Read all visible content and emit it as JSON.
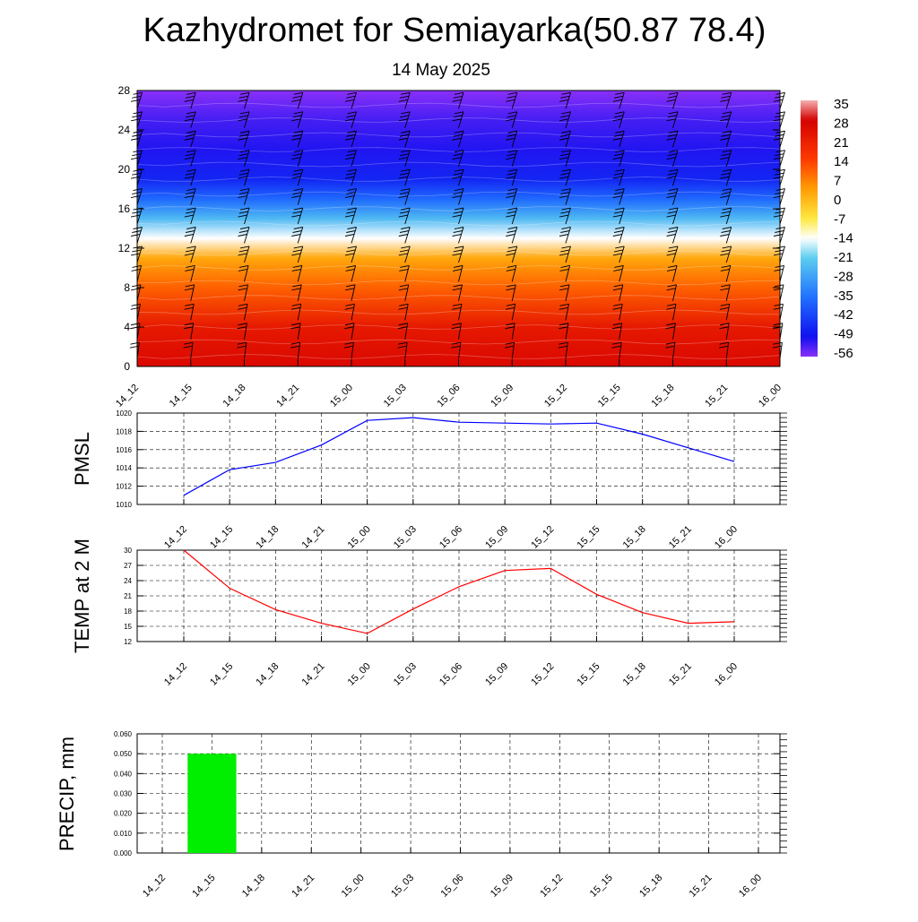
{
  "header": {
    "title": "Kazhydromet for Semiayarka(50.87 78.4)",
    "subtitle": "14 May 2025"
  },
  "time_labels": [
    "14_12",
    "14_15",
    "14_18",
    "14_21",
    "15_00",
    "15_03",
    "15_06",
    "15_09",
    "15_12",
    "15_15",
    "15_18",
    "15_21",
    "16_00"
  ],
  "chart_data": [
    {
      "type": "heatmap",
      "title": "",
      "xlabel": "",
      "ylabel": "",
      "x": [
        "14_12",
        "14_15",
        "14_18",
        "14_21",
        "15_00",
        "15_03",
        "15_06",
        "15_09",
        "15_12",
        "15_15",
        "15_18",
        "15_21",
        "16_00"
      ],
      "y_ticks": [
        "0",
        "4",
        "8",
        "12",
        "16",
        "20",
        "24",
        "28"
      ],
      "ylim": [
        0,
        28
      ],
      "colorbar_labels": [
        "35",
        "28",
        "21",
        "14",
        "7",
        "0",
        "-7",
        "-14",
        "-21",
        "-28",
        "-35",
        "-42",
        "-49",
        "-56"
      ],
      "colorbar_stops": [
        {
          "value": 35,
          "color": "#f4b0b0"
        },
        {
          "value": 28,
          "color": "#d40000"
        },
        {
          "value": 14,
          "color": "#ff3a00"
        },
        {
          "value": 4,
          "color": "#ff9a00"
        },
        {
          "value": -7,
          "color": "#ffe840"
        },
        {
          "value": -14,
          "color": "#ffffff"
        },
        {
          "value": -21,
          "color": "#5ccdf0"
        },
        {
          "value": -35,
          "color": "#2070ff"
        },
        {
          "value": -49,
          "color": "#1010f0"
        },
        {
          "value": -56,
          "color": "#8a30f8"
        }
      ],
      "profile": [
        {
          "level": 0,
          "temp": 26
        },
        {
          "level": 4,
          "temp": 22
        },
        {
          "level": 8,
          "temp": 10
        },
        {
          "level": 11,
          "temp": 2
        },
        {
          "level": 13,
          "temp": -14
        },
        {
          "level": 15,
          "temp": -24
        },
        {
          "level": 17,
          "temp": -36
        },
        {
          "level": 19,
          "temp": -46
        },
        {
          "level": 22,
          "temp": -50
        },
        {
          "level": 25,
          "temp": -52
        },
        {
          "level": 28,
          "temp": -56
        }
      ],
      "overlay": "wind barbs"
    },
    {
      "type": "line",
      "ylabel": "PMSL",
      "x": [
        "14_12",
        "14_15",
        "14_18",
        "14_21",
        "15_00",
        "15_03",
        "15_06",
        "15_09",
        "15_12",
        "15_15",
        "15_18",
        "15_21",
        "16_00"
      ],
      "series": [
        {
          "values": [
            1011.0,
            1013.8,
            1014.6,
            1016.5,
            1019.2,
            1019.5,
            1019.0,
            1018.9,
            1018.8,
            1018.9,
            1017.7,
            1016.2,
            1014.7
          ]
        }
      ],
      "ylim": [
        1010,
        1020
      ],
      "y_ticks": [
        "1010",
        "1012",
        "1014",
        "1016",
        "1018",
        "1020"
      ],
      "line_color": "#0000ff",
      "grid": true
    },
    {
      "type": "line",
      "ylabel": "TEMP at 2 M",
      "x": [
        "14_12",
        "14_15",
        "14_18",
        "14_21",
        "15_00",
        "15_03",
        "15_06",
        "15_09",
        "15_12",
        "15_15",
        "15_18",
        "15_21",
        "16_00"
      ],
      "series": [
        {
          "values": [
            30.0,
            22.5,
            18.3,
            15.6,
            13.6,
            18.4,
            22.8,
            26.0,
            26.4,
            21.3,
            17.7,
            15.6,
            15.9
          ]
        }
      ],
      "ylim": [
        12,
        30
      ],
      "y_ticks": [
        "12",
        "15",
        "18",
        "21",
        "24",
        "27",
        "30"
      ],
      "line_color": "#ff0000",
      "grid": true
    },
    {
      "type": "bar",
      "ylabel": "PRECIP, mm",
      "categories": [
        "14_12",
        "14_15",
        "14_18",
        "14_21",
        "15_00",
        "15_03",
        "15_06",
        "15_09",
        "15_12",
        "15_15",
        "15_18",
        "15_21",
        "16_00"
      ],
      "values": [
        0,
        0.05,
        0,
        0,
        0,
        0,
        0,
        0,
        0,
        0,
        0,
        0,
        0
      ],
      "ylim": [
        0,
        0.06
      ],
      "y_ticks": [
        "0.000",
        "0.010",
        "0.020",
        "0.030",
        "0.040",
        "0.050",
        "0.060"
      ],
      "bar_color": "#00ee00",
      "grid": true
    }
  ]
}
